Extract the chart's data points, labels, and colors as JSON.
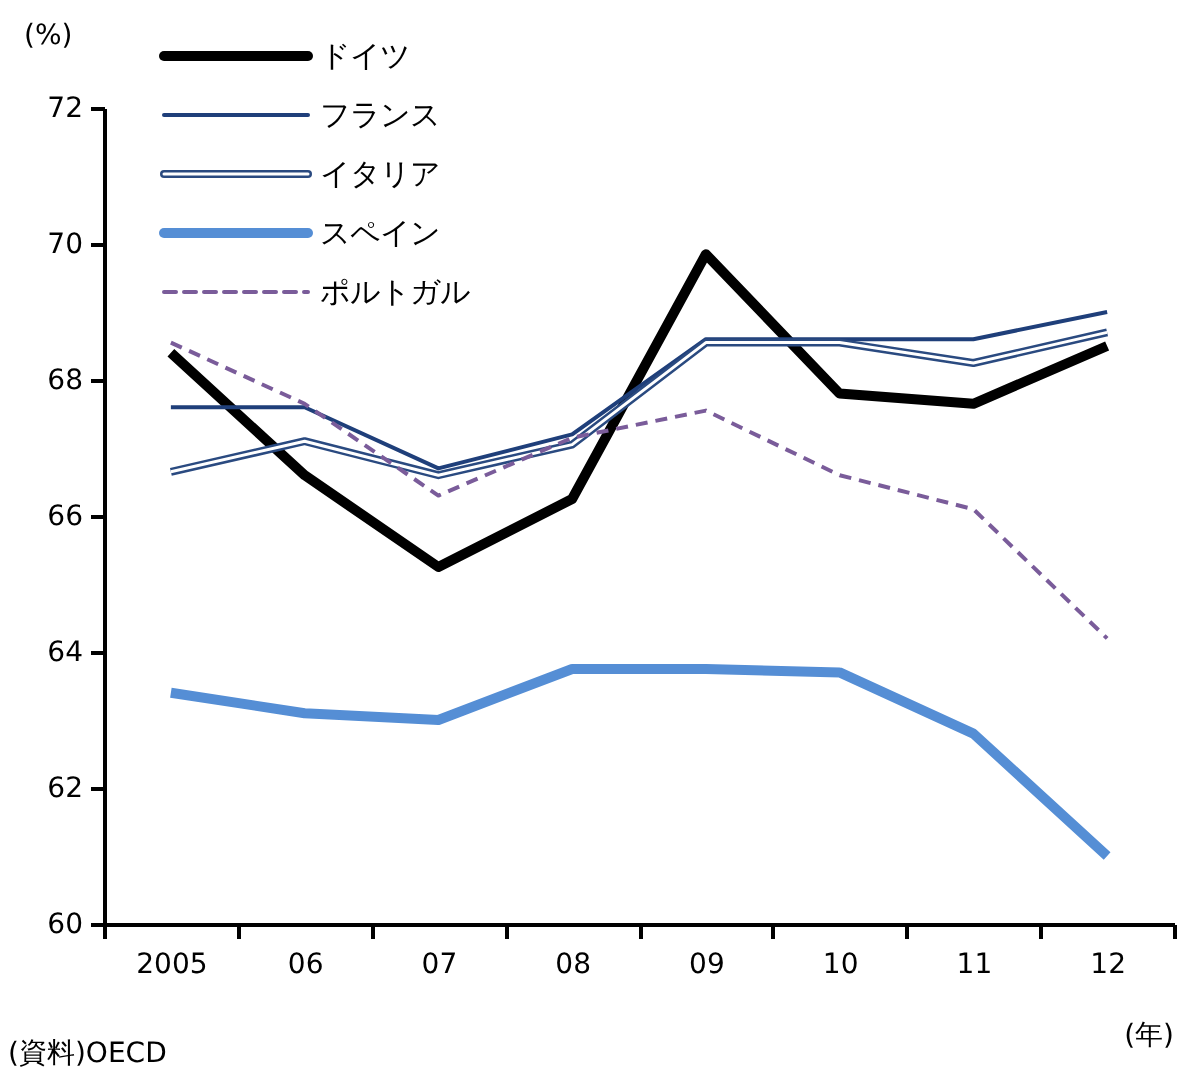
{
  "chart_data": {
    "type": "line",
    "ylabel": "(%)",
    "xlabel": "(年)",
    "categories": [
      "2005",
      "06",
      "07",
      "08",
      "09",
      "10",
      "11",
      "12"
    ],
    "series": [
      {
        "name": "ドイツ",
        "color": "#000000",
        "values": [
          68.4,
          66.6,
          65.25,
          66.25,
          69.85,
          67.8,
          67.65,
          68.5
        ]
      },
      {
        "name": "フランス",
        "color": "#1f3f7a",
        "values": [
          67.6,
          67.6,
          66.7,
          67.2,
          68.6,
          68.6,
          68.6,
          69.0
        ]
      },
      {
        "name": "イタリア",
        "color": "#2a4a80",
        "values": [
          66.65,
          67.1,
          66.6,
          67.05,
          68.55,
          68.55,
          68.25,
          68.7
        ]
      },
      {
        "name": "スペイン",
        "color": "#558ed5",
        "values": [
          63.4,
          63.1,
          63.0,
          63.75,
          63.75,
          63.7,
          62.8,
          61.0
        ]
      },
      {
        "name": "ポルトガル",
        "color": "#7a5c9a",
        "values": [
          68.55,
          67.65,
          66.3,
          67.15,
          67.55,
          66.6,
          66.1,
          64.2
        ],
        "line_style": "dashed"
      }
    ],
    "ylim": [
      60,
      72
    ],
    "yticks": [
      60,
      62,
      64,
      66,
      68,
      70,
      72
    ],
    "grid": false,
    "legend": "top left",
    "marker": "none",
    "annotations": [
      "(資料)OECD"
    ]
  }
}
